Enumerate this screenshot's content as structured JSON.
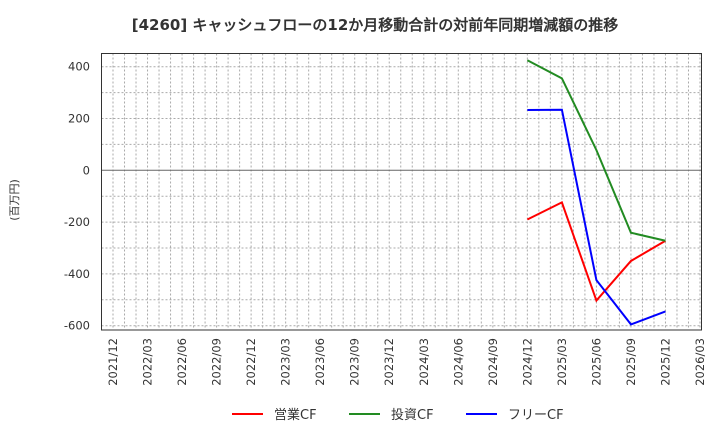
{
  "chart_data": {
    "type": "line",
    "title": "[4260]  キャッシュフローの12か月移動合計の対前年同期増減額の推移",
    "xlabel": "",
    "ylabel": "(百万円)",
    "ylim": [
      -610,
      450
    ],
    "yticks": [
      400,
      200,
      0,
      -200,
      -400,
      -600
    ],
    "ytick_labels": [
      "400",
      "200",
      "0",
      "-200",
      "-400",
      "-600"
    ],
    "xtick_labels": [
      "2021/12",
      "2022/03",
      "2022/06",
      "2022/09",
      "2022/12",
      "2023/03",
      "2023/06",
      "2023/09",
      "2023/12",
      "2024/03",
      "2024/06",
      "2024/09",
      "2024/12",
      "2025/03",
      "2025/06",
      "2025/09",
      "2025/12",
      "2026/03"
    ],
    "grid": true,
    "legend_position": "bottom",
    "x": [
      "2024/12",
      "2025/03",
      "2025/06",
      "2025/09",
      "2025/12"
    ],
    "series": [
      {
        "name": "営業CF",
        "color": "#ff0000",
        "values": [
          -190,
          -124,
          -503,
          -350,
          -272
        ]
      },
      {
        "name": "投資CF",
        "color": "#228b22",
        "values": [
          425,
          355,
          78,
          -241,
          -272
        ]
      },
      {
        "name": "フリーCF",
        "color": "#0000ff",
        "values": [
          233,
          234,
          -424,
          -595,
          -545
        ]
      }
    ]
  }
}
